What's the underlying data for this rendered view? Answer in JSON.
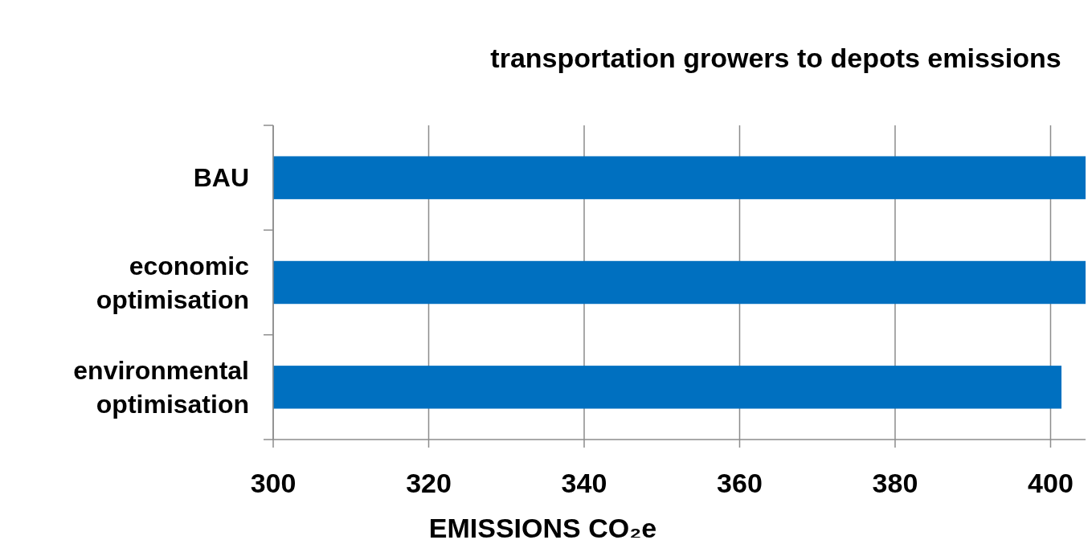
{
  "chart_data": {
    "type": "bar",
    "orientation": "horizontal",
    "title": "transportation growers to depots emissions",
    "xlabel": "EMISSIONS CO₂e",
    "categories": [
      "BAU",
      "economic optimisation",
      "environmental optimisation"
    ],
    "values": [
      404.5,
      404.5,
      401.4
    ],
    "color": "#0070c0",
    "xlim": [
      300,
      404.5
    ],
    "xticks": [
      300,
      320,
      340,
      360,
      380,
      400
    ],
    "grid": "x"
  }
}
